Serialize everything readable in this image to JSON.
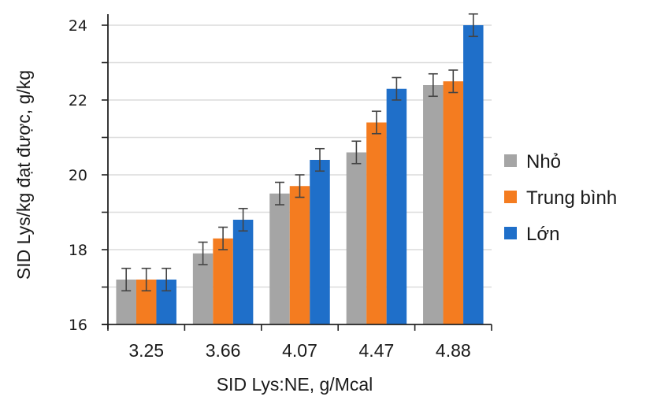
{
  "chart_data": {
    "type": "bar",
    "title": "",
    "xlabel": "SID Lys:NE, g/Mcal",
    "ylabel": "SID Lys/kg đạt được, g/kg",
    "categories": [
      "3.25",
      "3.66",
      "4.07",
      "4.47",
      "4.88"
    ],
    "ylim": [
      16,
      24
    ],
    "yticks": [
      16,
      18,
      20,
      22,
      24
    ],
    "yminor_step": 1,
    "grid": true,
    "legend_position": "right",
    "series": [
      {
        "name": "Nhỏ",
        "color": "#a5a5a5",
        "values": [
          17.2,
          17.9,
          19.5,
          20.6,
          22.4
        ],
        "errors": [
          0.3,
          0.3,
          0.3,
          0.3,
          0.3
        ]
      },
      {
        "name": "Trung bình",
        "color": "#f47c20",
        "values": [
          17.2,
          18.3,
          19.7,
          21.4,
          22.5
        ],
        "errors": [
          0.3,
          0.3,
          0.3,
          0.3,
          0.3
        ]
      },
      {
        "name": "Lớn",
        "color": "#1f6fc9",
        "values": [
          17.2,
          18.8,
          20.4,
          22.3,
          24.0
        ],
        "errors": [
          0.3,
          0.3,
          0.3,
          0.3,
          0.3
        ]
      }
    ]
  }
}
